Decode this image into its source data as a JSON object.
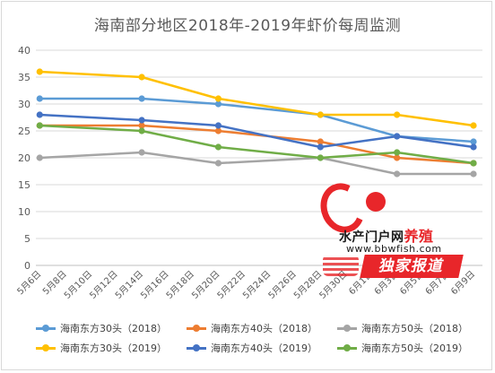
{
  "chart_data": {
    "type": "line",
    "title": "海南部分地区2018年-2019年虾价每周监测",
    "ylim": [
      0,
      40
    ],
    "yticks": [
      0,
      5,
      10,
      15,
      20,
      25,
      30,
      35,
      40
    ],
    "categories": [
      "5月6日",
      "5月8日",
      "5月10日",
      "5月12日",
      "5月14日",
      "5月16日",
      "5月18日",
      "5月20日",
      "5月22日",
      "5月24日",
      "5月26日",
      "5月28日",
      "5月30日",
      "6月1日",
      "6月3日",
      "6月5日",
      "6月7日",
      "6月9日"
    ],
    "grid": true,
    "legend_position": "bottom",
    "series": [
      {
        "name": "海南东方30头（2018）",
        "color": "#5b9bd5",
        "points": [
          [
            0,
            31
          ],
          [
            4,
            31
          ],
          [
            7,
            30
          ],
          [
            11,
            28
          ],
          [
            14,
            24
          ],
          [
            17,
            23
          ]
        ]
      },
      {
        "name": "海南东方40头（2018）",
        "color": "#ed7d31",
        "points": [
          [
            0,
            26
          ],
          [
            4,
            26
          ],
          [
            7,
            25
          ],
          [
            11,
            23
          ],
          [
            14,
            20
          ],
          [
            17,
            19
          ]
        ]
      },
      {
        "name": "海南东方50头（2018）",
        "color": "#a5a5a5",
        "points": [
          [
            0,
            20
          ],
          [
            4,
            21
          ],
          [
            7,
            19
          ],
          [
            11,
            20
          ],
          [
            14,
            17
          ],
          [
            17,
            17
          ]
        ]
      },
      {
        "name": "海南东方30头（2019）",
        "color": "#ffc000",
        "points": [
          [
            0,
            36
          ],
          [
            4,
            35
          ],
          [
            7,
            31
          ],
          [
            11,
            28
          ],
          [
            14,
            28
          ],
          [
            17,
            26
          ]
        ]
      },
      {
        "name": "海南东方40头（2019）",
        "color": "#4472c4",
        "points": [
          [
            0,
            28
          ],
          [
            4,
            27
          ],
          [
            7,
            26
          ],
          [
            11,
            22
          ],
          [
            14,
            24
          ],
          [
            17,
            22
          ]
        ]
      },
      {
        "name": "海南东方50头（2019）",
        "color": "#70ad47",
        "points": [
          [
            0,
            26
          ],
          [
            4,
            25
          ],
          [
            7,
            22
          ],
          [
            11,
            20
          ],
          [
            14,
            21
          ],
          [
            17,
            19
          ]
        ]
      }
    ]
  },
  "watermark": {
    "line1": "水产门户网",
    "line1_red": "养殖",
    "url": "www.bbwfish.com",
    "banner": "独家报道"
  }
}
